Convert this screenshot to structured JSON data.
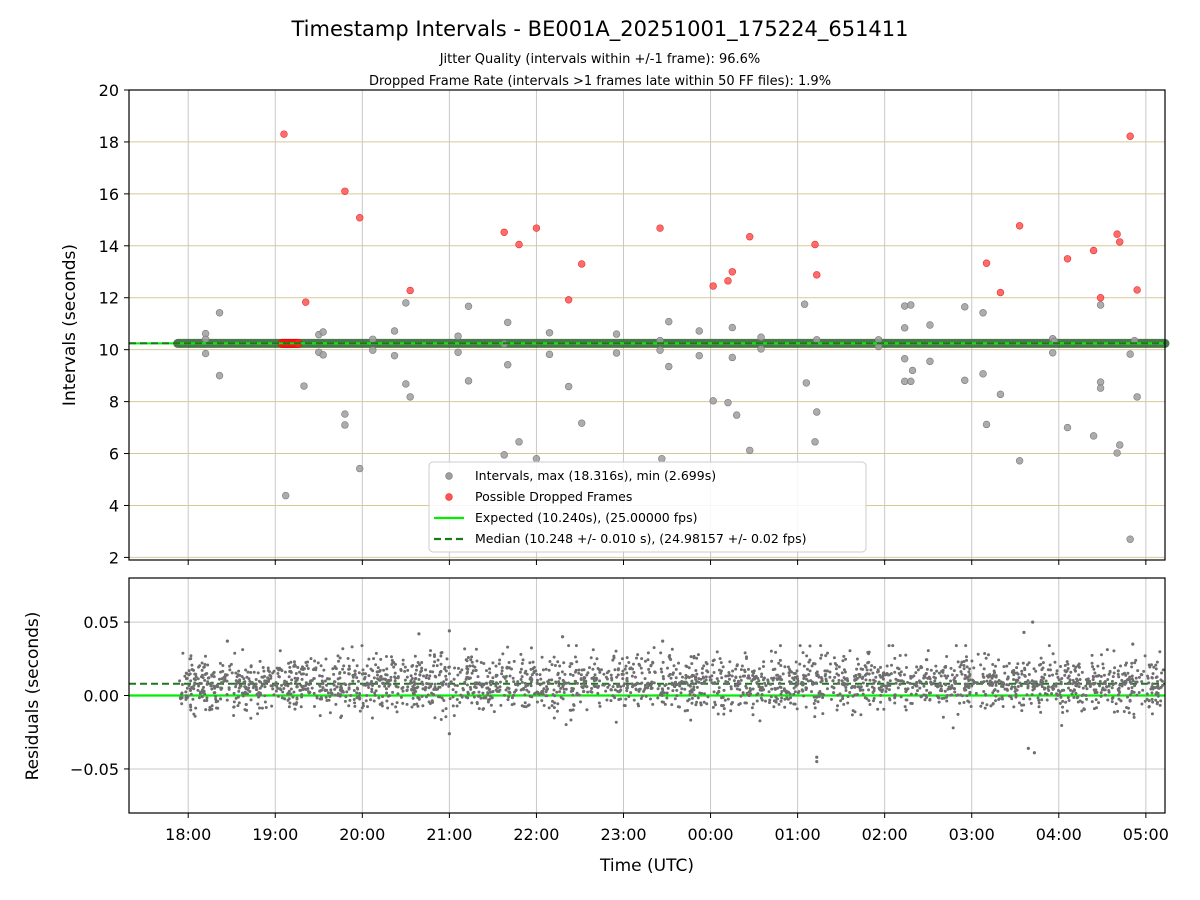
{
  "chart_data": {
    "type": "scatter",
    "title": "Timestamp Intervals - BE001A_20251001_175224_651411",
    "subtitle_1": "Jitter Quality (intervals within +/-1 frame): 96.6%",
    "subtitle_2": "Dropped Frame Rate (intervals >1 frames late within 50 FF files): 1.9%",
    "xlabel": "Time (UTC)",
    "x_unit": "hours since 00:00 UTC on first day",
    "xlim": [
      17.32,
      29.22
    ],
    "x_ticks": [
      {
        "value": 18,
        "label": "18:00"
      },
      {
        "value": 19,
        "label": "19:00"
      },
      {
        "value": 20,
        "label": "20:00"
      },
      {
        "value": 21,
        "label": "21:00"
      },
      {
        "value": 22,
        "label": "22:00"
      },
      {
        "value": 23,
        "label": "23:00"
      },
      {
        "value": 24,
        "label": "00:00"
      },
      {
        "value": 25,
        "label": "01:00"
      },
      {
        "value": 26,
        "label": "02:00"
      },
      {
        "value": 27,
        "label": "03:00"
      },
      {
        "value": 28,
        "label": "04:00"
      },
      {
        "value": 29,
        "label": "05:00"
      }
    ],
    "top_panel": {
      "ylabel": "Intervals (seconds)",
      "ylim": [
        1.9,
        20
      ],
      "y_ticks": [
        {
          "value": 2,
          "label": "2"
        },
        {
          "value": 4,
          "label": "4"
        },
        {
          "value": 6,
          "label": "6"
        },
        {
          "value": 8,
          "label": "8"
        },
        {
          "value": 10,
          "label": "10"
        },
        {
          "value": 12,
          "label": "12"
        },
        {
          "value": 14,
          "label": "14"
        },
        {
          "value": 16,
          "label": "16"
        },
        {
          "value": 18,
          "label": "18"
        },
        {
          "value": 20,
          "label": "20"
        }
      ],
      "expected_interval": 10.24,
      "median_interval": 10.248,
      "main_band": {
        "x_start": 17.88,
        "x_end": 29.22,
        "y": 10.24
      },
      "intervals_points": [
        [
          18.2,
          10.62
        ],
        [
          18.2,
          10.4
        ],
        [
          18.2,
          9.85
        ],
        [
          18.36,
          11.42
        ],
        [
          18.36,
          9.0
        ],
        [
          19.12,
          4.38
        ],
        [
          19.33,
          8.6
        ],
        [
          19.5,
          9.9
        ],
        [
          19.5,
          10.58
        ],
        [
          19.55,
          10.68
        ],
        [
          19.55,
          9.8
        ],
        [
          19.8,
          7.52
        ],
        [
          19.8,
          7.1
        ],
        [
          19.97,
          5.42
        ],
        [
          20.12,
          10.4
        ],
        [
          20.12,
          9.98
        ],
        [
          20.37,
          10.72
        ],
        [
          20.37,
          9.77
        ],
        [
          20.5,
          11.8
        ],
        [
          20.5,
          8.68
        ],
        [
          20.55,
          8.18
        ],
        [
          21.1,
          10.52
        ],
        [
          21.1,
          9.9
        ],
        [
          21.22,
          11.67
        ],
        [
          21.22,
          8.8
        ],
        [
          21.63,
          10.22
        ],
        [
          21.63,
          5.95
        ],
        [
          21.67,
          11.05
        ],
        [
          21.67,
          9.42
        ],
        [
          21.8,
          6.45
        ],
        [
          22.0,
          5.8
        ],
        [
          22.15,
          10.65
        ],
        [
          22.15,
          9.82
        ],
        [
          22.37,
          8.58
        ],
        [
          22.52,
          7.17
        ],
        [
          22.92,
          10.6
        ],
        [
          22.92,
          9.87
        ],
        [
          23.42,
          10.35
        ],
        [
          23.42,
          9.98
        ],
        [
          23.44,
          5.8
        ],
        [
          23.52,
          11.08
        ],
        [
          23.52,
          9.35
        ],
        [
          23.87,
          10.72
        ],
        [
          23.87,
          9.77
        ],
        [
          24.03,
          8.03
        ],
        [
          24.2,
          7.96
        ],
        [
          24.25,
          10.85
        ],
        [
          24.25,
          9.7
        ],
        [
          24.3,
          7.48
        ],
        [
          24.45,
          6.12
        ],
        [
          24.58,
          10.48
        ],
        [
          24.58,
          10.03
        ],
        [
          25.08,
          11.75
        ],
        [
          25.1,
          8.72
        ],
        [
          25.2,
          6.45
        ],
        [
          25.22,
          10.38
        ],
        [
          25.22,
          7.6
        ],
        [
          25.93,
          10.38
        ],
        [
          25.93,
          10.12
        ],
        [
          26.23,
          11.68
        ],
        [
          26.23,
          10.84
        ],
        [
          26.23,
          9.65
        ],
        [
          26.23,
          8.78
        ],
        [
          26.3,
          11.72
        ],
        [
          26.3,
          8.78
        ],
        [
          26.32,
          9.2
        ],
        [
          26.52,
          10.95
        ],
        [
          26.52,
          9.55
        ],
        [
          26.92,
          11.65
        ],
        [
          26.92,
          8.82
        ],
        [
          27.13,
          11.42
        ],
        [
          27.13,
          9.07
        ],
        [
          27.17,
          7.12
        ],
        [
          27.33,
          8.28
        ],
        [
          27.55,
          5.72
        ],
        [
          27.93,
          10.42
        ],
        [
          27.93,
          9.88
        ],
        [
          27.95,
          10.32
        ],
        [
          28.1,
          7.0
        ],
        [
          28.4,
          6.68
        ],
        [
          28.48,
          11.72
        ],
        [
          28.48,
          8.75
        ],
        [
          28.48,
          8.52
        ],
        [
          28.67,
          6.02
        ],
        [
          28.7,
          6.33
        ],
        [
          28.82,
          9.83
        ],
        [
          28.82,
          2.7
        ],
        [
          28.87,
          10.35
        ],
        [
          28.9,
          8.18
        ]
      ],
      "dropped_points": [
        [
          19.1,
          18.3
        ],
        [
          19.35,
          11.83
        ],
        [
          19.8,
          16.1
        ],
        [
          19.97,
          15.08
        ],
        [
          20.55,
          12.28
        ],
        [
          21.63,
          14.52
        ],
        [
          21.8,
          14.05
        ],
        [
          22.0,
          14.68
        ],
        [
          22.37,
          11.92
        ],
        [
          22.52,
          13.3
        ],
        [
          23.42,
          14.68
        ],
        [
          24.03,
          12.45
        ],
        [
          24.2,
          12.65
        ],
        [
          24.25,
          13.0
        ],
        [
          24.45,
          14.35
        ],
        [
          25.2,
          14.05
        ],
        [
          25.22,
          12.88
        ],
        [
          27.17,
          13.33
        ],
        [
          27.33,
          12.2
        ],
        [
          27.55,
          14.77
        ],
        [
          28.1,
          13.5
        ],
        [
          28.4,
          13.82
        ],
        [
          28.48,
          12.0
        ],
        [
          28.67,
          14.45
        ],
        [
          28.7,
          14.15
        ],
        [
          28.82,
          18.22
        ],
        [
          28.9,
          12.3
        ]
      ],
      "dropped_cluster": {
        "x_start": 19.08,
        "x_end": 19.26,
        "y": 10.24
      },
      "legend": {
        "position": "lower-center",
        "entries": [
          {
            "label": "Intervals, max (18.316s), min (2.699s)",
            "kind": "gray-dot"
          },
          {
            "label": "Possible Dropped Frames",
            "kind": "red-dot"
          },
          {
            "label": "Expected (10.240s), (25.00000 fps)",
            "kind": "green-line"
          },
          {
            "label": "Median (10.248 +/- 0.010 s), (24.98157 +/- 0.02 fps)",
            "kind": "dashed-line"
          }
        ]
      }
    },
    "bottom_panel": {
      "ylabel": "Residuals (seconds)",
      "ylim": [
        -0.08,
        0.08
      ],
      "y_ticks": [
        {
          "value": 0.05,
          "label": "0.05"
        },
        {
          "value": 0.0,
          "label": "0.00"
        },
        {
          "value": -0.05,
          "label": "−0.05"
        }
      ],
      "expected_residual": 0.0,
      "median_residual": 0.008,
      "residual_scatter": {
        "x_start": 17.9,
        "x_end": 29.2,
        "count": 2600,
        "center": 0.008,
        "spread": 0.0095,
        "seed": 20251001
      },
      "residual_outliers": [
        [
          18.45,
          0.037
        ],
        [
          20.65,
          0.042
        ],
        [
          21.0,
          0.044
        ],
        [
          21.0,
          -0.026
        ],
        [
          22.3,
          0.04
        ],
        [
          23.45,
          0.037
        ],
        [
          25.22,
          -0.042
        ],
        [
          25.22,
          -0.045
        ],
        [
          27.7,
          0.05
        ],
        [
          27.65,
          -0.036
        ],
        [
          27.72,
          -0.039
        ],
        [
          27.6,
          0.043
        ],
        [
          28.85,
          0.035
        ]
      ]
    },
    "colors": {
      "intervals": "#9e9e9e",
      "dropped": "#ff5252",
      "expected": "#00ee00",
      "median": "#1a7a1a",
      "band": "#3d6b3d",
      "residuals": "#6e6e6e",
      "h_grid_top": "#d8c898",
      "grid": "#c8c8c8"
    }
  }
}
